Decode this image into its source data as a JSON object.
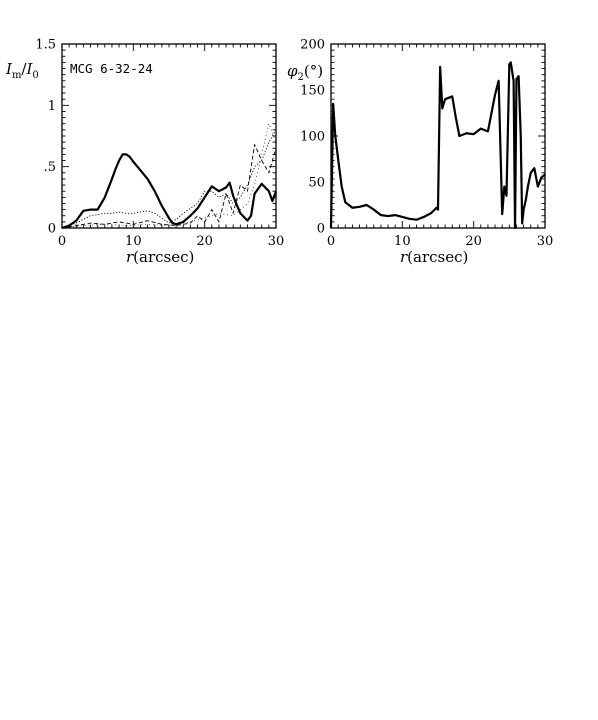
{
  "chart_data": [
    {
      "type": "line",
      "ylabel": "I_m/I_0",
      "xlabel": "r(arcsec)",
      "annotation": "MCG 6-32-24",
      "xlim": [
        0,
        30
      ],
      "ylim": [
        0,
        1.5
      ],
      "x_ticks": [
        0,
        10,
        20,
        30
      ],
      "y_ticks": [
        0,
        0.5,
        1,
        1.5
      ],
      "x_tick_labels": [
        "0",
        "10",
        "20",
        "30"
      ],
      "y_tick_labels": [
        "0",
        ".5",
        "1",
        "1.5"
      ],
      "grid": false,
      "legend": "none",
      "series": [
        {
          "style": "solid-thick",
          "x": [
            0,
            1,
            2,
            3,
            4,
            5,
            6,
            7,
            7.5,
            8,
            8.5,
            9,
            9.5,
            10,
            11,
            12,
            13,
            14,
            15,
            15.5,
            16,
            17,
            18,
            19,
            20,
            21,
            22,
            23,
            23.5,
            24,
            25,
            26,
            26.5,
            27,
            28,
            29,
            29.5,
            30
          ],
          "y": [
            0,
            0.02,
            0.06,
            0.14,
            0.15,
            0.15,
            0.25,
            0.4,
            0.48,
            0.55,
            0.6,
            0.6,
            0.58,
            0.54,
            0.47,
            0.4,
            0.3,
            0.18,
            0.08,
            0.04,
            0.03,
            0.05,
            0.1,
            0.16,
            0.25,
            0.34,
            0.3,
            0.33,
            0.37,
            0.26,
            0.12,
            0.06,
            0.1,
            0.28,
            0.36,
            0.3,
            0.22,
            0.3
          ]
        },
        {
          "style": "dotted",
          "x": [
            0,
            1,
            2,
            3,
            4,
            5,
            6,
            7,
            8,
            9,
            10,
            11,
            12,
            13,
            14,
            15,
            16,
            17,
            18,
            19,
            20,
            21,
            22,
            23,
            24,
            25,
            26,
            27,
            28,
            29,
            30
          ],
          "y": [
            0,
            0.02,
            0.04,
            0.07,
            0.1,
            0.11,
            0.12,
            0.12,
            0.13,
            0.12,
            0.12,
            0.13,
            0.14,
            0.12,
            0.08,
            0.04,
            0.07,
            0.12,
            0.16,
            0.2,
            0.3,
            0.3,
            0.25,
            0.28,
            0.2,
            0.25,
            0.35,
            0.5,
            0.55,
            0.7,
            0.8
          ]
        },
        {
          "style": "dashed",
          "x": [
            0,
            2,
            4,
            6,
            8,
            10,
            12,
            14,
            16,
            18,
            19,
            20,
            21,
            22,
            23,
            24,
            25,
            26,
            27,
            28,
            29,
            30
          ],
          "y": [
            0,
            0.02,
            0.04,
            0.03,
            0.05,
            0.03,
            0.06,
            0.03,
            0.02,
            0.04,
            0.1,
            0.05,
            0.15,
            0.05,
            0.28,
            0.12,
            0.35,
            0.3,
            0.68,
            0.55,
            0.45,
            0.65
          ]
        },
        {
          "style": "dotted-sparse",
          "x": [
            0,
            3,
            6,
            9,
            12,
            15,
            18,
            20,
            22,
            24,
            26,
            27,
            28,
            29,
            30
          ],
          "y": [
            0,
            0.02,
            0.03,
            0.02,
            0.03,
            0.02,
            0.05,
            0.08,
            0.12,
            0.1,
            0.2,
            0.35,
            0.6,
            0.85,
            0.7
          ]
        }
      ]
    },
    {
      "type": "line",
      "ylabel": "φ2(°)",
      "xlabel": "r(arcsec)",
      "xlim": [
        0,
        30
      ],
      "ylim": [
        0,
        200
      ],
      "x_ticks": [
        0,
        10,
        20,
        30
      ],
      "y_ticks": [
        0,
        50,
        100,
        150,
        200
      ],
      "x_tick_labels": [
        "0",
        "10",
        "20",
        "30"
      ],
      "y_tick_labels": [
        "0",
        "50",
        "100",
        "150",
        "200"
      ],
      "grid": false,
      "legend": "none",
      "series": [
        {
          "style": "solid-thick",
          "x": [
            0,
            0.3,
            0.6,
            1,
            1.5,
            2,
            3,
            4,
            5,
            6,
            7,
            8,
            9,
            10,
            11,
            12,
            13,
            14,
            14.8,
            15,
            15.3,
            15.6,
            16,
            17,
            17.5,
            18,
            19,
            20,
            21,
            22,
            23,
            23.5,
            24,
            24.3,
            24.6,
            25,
            25.2,
            25.6,
            25.8,
            26,
            26.3,
            26.6,
            26.8,
            27,
            27.3,
            27.6,
            28,
            28.5,
            29,
            29.5,
            30
          ],
          "y": [
            0,
            135,
            100,
            75,
            45,
            28,
            22,
            23,
            25,
            20,
            14,
            13,
            14,
            12,
            10,
            9,
            12,
            16,
            22,
            20,
            175,
            130,
            140,
            143,
            120,
            100,
            103,
            102,
            108,
            105,
            145,
            160,
            15,
            45,
            35,
            178,
            180,
            160,
            0,
            162,
            165,
            100,
            5,
            20,
            30,
            45,
            60,
            65,
            45,
            55,
            58
          ]
        }
      ]
    }
  ]
}
